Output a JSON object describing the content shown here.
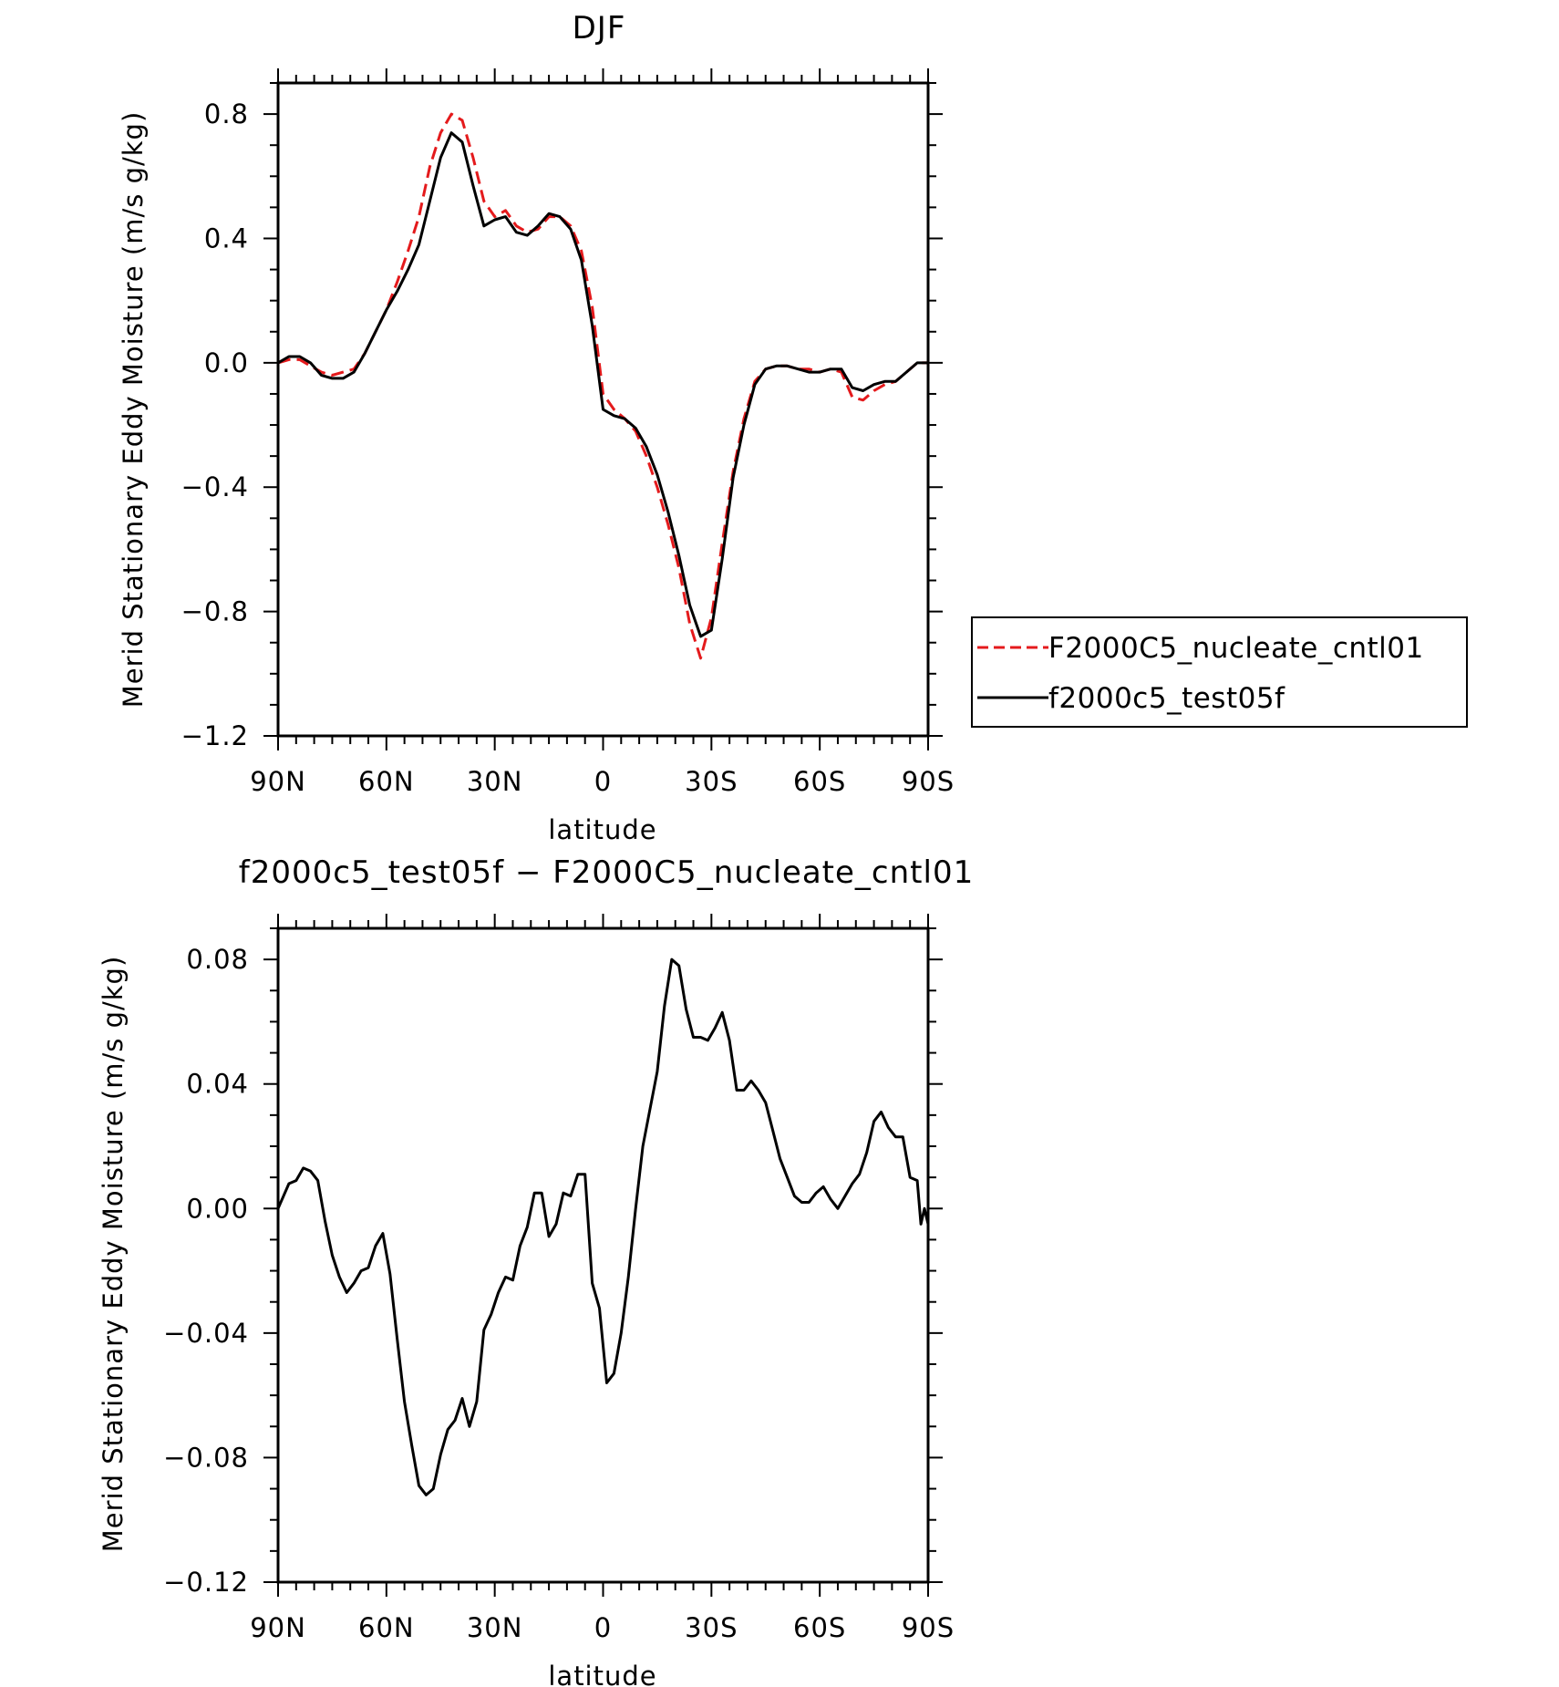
{
  "chart_data": [
    {
      "type": "line",
      "title": "DJF",
      "xlabel": "latitude",
      "ylabel": "Merid Stationary Eddy Moisture (m/s g/kg)",
      "xlim": [
        90,
        -90
      ],
      "ylim": [
        -1.2,
        0.9
      ],
      "x_ticks": [
        {
          "value": 90,
          "label": "90N"
        },
        {
          "value": 60,
          "label": "60N"
        },
        {
          "value": 30,
          "label": "30N"
        },
        {
          "value": 0,
          "label": "0"
        },
        {
          "value": -30,
          "label": "30S"
        },
        {
          "value": -60,
          "label": "60S"
        },
        {
          "value": -90,
          "label": "90S"
        }
      ],
      "y_ticks": [
        {
          "value": 0.8,
          "label": "0.8"
        },
        {
          "value": 0.4,
          "label": "0.4"
        },
        {
          "value": 0.0,
          "label": "0.0"
        },
        {
          "value": -0.4,
          "label": "−0.4"
        },
        {
          "value": -0.8,
          "label": "−0.8"
        },
        {
          "value": -1.2,
          "label": "−1.2"
        }
      ],
      "legend": "right",
      "series": [
        {
          "name": "F2000C5_nucleate_cntl01",
          "color": "#e41a1c",
          "dash": "dashed",
          "points": [
            [
              90,
              0.0
            ],
            [
              87,
              0.01
            ],
            [
              84,
              0.01
            ],
            [
              81,
              -0.01
            ],
            [
              78,
              -0.03
            ],
            [
              75,
              -0.04
            ],
            [
              72,
              -0.03
            ],
            [
              69,
              -0.02
            ],
            [
              66,
              0.03
            ],
            [
              63,
              0.1
            ],
            [
              60,
              0.17
            ],
            [
              57,
              0.26
            ],
            [
              54,
              0.36
            ],
            [
              51,
              0.47
            ],
            [
              48,
              0.63
            ],
            [
              45,
              0.74
            ],
            [
              42,
              0.8
            ],
            [
              39,
              0.78
            ],
            [
              36,
              0.66
            ],
            [
              33,
              0.52
            ],
            [
              30,
              0.47
            ],
            [
              27,
              0.49
            ],
            [
              24,
              0.44
            ],
            [
              21,
              0.42
            ],
            [
              18,
              0.43
            ],
            [
              15,
              0.47
            ],
            [
              12,
              0.47
            ],
            [
              9,
              0.44
            ],
            [
              6,
              0.36
            ],
            [
              3,
              0.18
            ],
            [
              0,
              -0.1
            ],
            [
              -3,
              -0.15
            ],
            [
              -6,
              -0.18
            ],
            [
              -9,
              -0.22
            ],
            [
              -12,
              -0.3
            ],
            [
              -15,
              -0.4
            ],
            [
              -18,
              -0.52
            ],
            [
              -21,
              -0.66
            ],
            [
              -24,
              -0.84
            ],
            [
              -27,
              -0.95
            ],
            [
              -30,
              -0.82
            ],
            [
              -33,
              -0.58
            ],
            [
              -36,
              -0.35
            ],
            [
              -39,
              -0.18
            ],
            [
              -42,
              -0.06
            ],
            [
              -45,
              -0.02
            ],
            [
              -48,
              -0.01
            ],
            [
              -51,
              -0.01
            ],
            [
              -54,
              -0.02
            ],
            [
              -57,
              -0.02
            ],
            [
              -60,
              -0.03
            ],
            [
              -63,
              -0.02
            ],
            [
              -66,
              -0.03
            ],
            [
              -69,
              -0.11
            ],
            [
              -72,
              -0.12
            ],
            [
              -75,
              -0.09
            ],
            [
              -78,
              -0.07
            ],
            [
              -81,
              -0.06
            ],
            [
              -84,
              -0.03
            ],
            [
              -87,
              0.0
            ],
            [
              -90,
              0.0
            ]
          ]
        },
        {
          "name": "f2000c5_test05f",
          "color": "#000000",
          "dash": "solid",
          "points": [
            [
              90,
              0.0
            ],
            [
              87,
              0.02
            ],
            [
              84,
              0.02
            ],
            [
              81,
              0.0
            ],
            [
              78,
              -0.04
            ],
            [
              75,
              -0.05
            ],
            [
              72,
              -0.05
            ],
            [
              69,
              -0.03
            ],
            [
              66,
              0.03
            ],
            [
              63,
              0.1
            ],
            [
              60,
              0.17
            ],
            [
              57,
              0.23
            ],
            [
              54,
              0.3
            ],
            [
              51,
              0.38
            ],
            [
              48,
              0.52
            ],
            [
              45,
              0.66
            ],
            [
              42,
              0.74
            ],
            [
              39,
              0.71
            ],
            [
              36,
              0.57
            ],
            [
              33,
              0.44
            ],
            [
              30,
              0.46
            ],
            [
              27,
              0.47
            ],
            [
              24,
              0.42
            ],
            [
              21,
              0.41
            ],
            [
              18,
              0.44
            ],
            [
              15,
              0.48
            ],
            [
              12,
              0.47
            ],
            [
              9,
              0.43
            ],
            [
              6,
              0.33
            ],
            [
              3,
              0.12
            ],
            [
              0,
              -0.15
            ],
            [
              -3,
              -0.17
            ],
            [
              -6,
              -0.18
            ],
            [
              -9,
              -0.21
            ],
            [
              -12,
              -0.27
            ],
            [
              -15,
              -0.36
            ],
            [
              -18,
              -0.48
            ],
            [
              -21,
              -0.62
            ],
            [
              -24,
              -0.78
            ],
            [
              -27,
              -0.88
            ],
            [
              -30,
              -0.86
            ],
            [
              -33,
              -0.63
            ],
            [
              -36,
              -0.37
            ],
            [
              -39,
              -0.2
            ],
            [
              -42,
              -0.07
            ],
            [
              -45,
              -0.02
            ],
            [
              -48,
              -0.01
            ],
            [
              -51,
              -0.01
            ],
            [
              -54,
              -0.02
            ],
            [
              -57,
              -0.03
            ],
            [
              -60,
              -0.03
            ],
            [
              -63,
              -0.02
            ],
            [
              -66,
              -0.02
            ],
            [
              -69,
              -0.08
            ],
            [
              -72,
              -0.09
            ],
            [
              -75,
              -0.07
            ],
            [
              -78,
              -0.06
            ],
            [
              -81,
              -0.06
            ],
            [
              -84,
              -0.03
            ],
            [
              -87,
              0.0
            ],
            [
              -90,
              0.0
            ]
          ]
        }
      ]
    },
    {
      "type": "line",
      "title": "f2000c5_test05f − F2000C5_nucleate_cntl01",
      "xlabel": "latitude",
      "ylabel": "Merid Stationary Eddy Moisture (m/s g/kg)",
      "xlim": [
        90,
        -90
      ],
      "ylim": [
        -0.12,
        0.09
      ],
      "x_ticks": [
        {
          "value": 90,
          "label": "90N"
        },
        {
          "value": 60,
          "label": "60N"
        },
        {
          "value": 30,
          "label": "30N"
        },
        {
          "value": 0,
          "label": "0"
        },
        {
          "value": -30,
          "label": "30S"
        },
        {
          "value": -60,
          "label": "60S"
        },
        {
          "value": -90,
          "label": "90S"
        }
      ],
      "y_ticks": [
        {
          "value": 0.08,
          "label": "0.08"
        },
        {
          "value": 0.04,
          "label": "0.04"
        },
        {
          "value": 0.0,
          "label": "0.00"
        },
        {
          "value": -0.04,
          "label": "−0.04"
        },
        {
          "value": -0.08,
          "label": "−0.08"
        },
        {
          "value": -0.12,
          "label": "−0.12"
        }
      ],
      "series": [
        {
          "color": "#000000",
          "dash": "solid",
          "points": [
            [
              90,
              0.0
            ],
            [
              87,
              0.008
            ],
            [
              85,
              0.009
            ],
            [
              83,
              0.013
            ],
            [
              81,
              0.012
            ],
            [
              79,
              0.009
            ],
            [
              77,
              -0.004
            ],
            [
              75,
              -0.015
            ],
            [
              73,
              -0.022
            ],
            [
              71,
              -0.027
            ],
            [
              69,
              -0.024
            ],
            [
              67,
              -0.02
            ],
            [
              65,
              -0.019
            ],
            [
              63,
              -0.012
            ],
            [
              61,
              -0.008
            ],
            [
              59,
              -0.021
            ],
            [
              57,
              -0.042
            ],
            [
              55,
              -0.062
            ],
            [
              53,
              -0.076
            ],
            [
              51,
              -0.089
            ],
            [
              49,
              -0.092
            ],
            [
              47,
              -0.09
            ],
            [
              45,
              -0.079
            ],
            [
              43,
              -0.071
            ],
            [
              41,
              -0.068
            ],
            [
              39,
              -0.061
            ],
            [
              37,
              -0.07
            ],
            [
              35,
              -0.062
            ],
            [
              33,
              -0.039
            ],
            [
              31,
              -0.034
            ],
            [
              29,
              -0.027
            ],
            [
              27,
              -0.022
            ],
            [
              25,
              -0.023
            ],
            [
              23,
              -0.012
            ],
            [
              21,
              -0.006
            ],
            [
              19,
              0.005
            ],
            [
              17,
              0.005
            ],
            [
              15,
              -0.009
            ],
            [
              13,
              -0.005
            ],
            [
              11,
              0.005
            ],
            [
              9,
              0.004
            ],
            [
              7,
              0.011
            ],
            [
              5,
              0.011
            ],
            [
              3,
              -0.024
            ],
            [
              1,
              -0.032
            ],
            [
              -1,
              -0.056
            ],
            [
              -3,
              -0.053
            ],
            [
              -5,
              -0.04
            ],
            [
              -7,
              -0.022
            ],
            [
              -9,
              0.0
            ],
            [
              -11,
              0.02
            ],
            [
              -13,
              0.032
            ],
            [
              -15,
              0.044
            ],
            [
              -17,
              0.065
            ],
            [
              -19,
              0.08
            ],
            [
              -21,
              0.078
            ],
            [
              -23,
              0.064
            ],
            [
              -25,
              0.055
            ],
            [
              -27,
              0.055
            ],
            [
              -29,
              0.054
            ],
            [
              -31,
              0.058
            ],
            [
              -33,
              0.063
            ],
            [
              -35,
              0.054
            ],
            [
              -37,
              0.038
            ],
            [
              -39,
              0.038
            ],
            [
              -41,
              0.041
            ],
            [
              -43,
              0.038
            ],
            [
              -45,
              0.034
            ],
            [
              -47,
              0.025
            ],
            [
              -49,
              0.016
            ],
            [
              -51,
              0.01
            ],
            [
              -53,
              0.004
            ],
            [
              -55,
              0.002
            ],
            [
              -57,
              0.002
            ],
            [
              -59,
              0.005
            ],
            [
              -61,
              0.007
            ],
            [
              -63,
              0.003
            ],
            [
              -65,
              0.0
            ],
            [
              -67,
              0.004
            ],
            [
              -69,
              0.008
            ],
            [
              -71,
              0.011
            ],
            [
              -73,
              0.018
            ],
            [
              -75,
              0.028
            ],
            [
              -77,
              0.031
            ],
            [
              -79,
              0.026
            ],
            [
              -81,
              0.023
            ],
            [
              -83,
              0.023
            ],
            [
              -85,
              0.01
            ],
            [
              -87,
              0.009
            ],
            [
              -88,
              -0.005
            ],
            [
              -89,
              0.0
            ],
            [
              -90,
              -0.005
            ]
          ]
        }
      ]
    }
  ]
}
